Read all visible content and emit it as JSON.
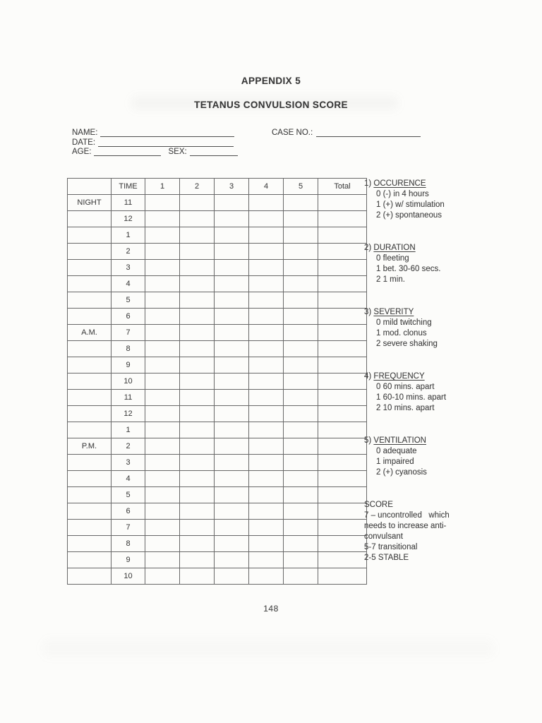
{
  "page": {
    "appendix_label": "APPENDIX 5",
    "title": "TETANUS CONVULSION SCORE",
    "page_number": "148"
  },
  "colors": {
    "ink": "#3c3c3c",
    "paper": "#fcfcfa",
    "table_border": "#686868",
    "form_line": "#4e4e4e"
  },
  "patient_form": {
    "name_label": "NAME:",
    "name_value": "",
    "date_label": "DATE:",
    "date_value": "",
    "age_label": "AGE:",
    "age_value": "",
    "sex_label": "SEX:",
    "sex_value": "",
    "case_no_label": "CASE NO.:",
    "case_no_value": ""
  },
  "score_table": {
    "headers": [
      "",
      "TIME",
      "1",
      "2",
      "3",
      "4",
      "5",
      "Total"
    ],
    "rows": [
      {
        "period": "NIGHT",
        "time": "11",
        "cells": [
          "",
          "",
          "",
          "",
          "",
          ""
        ]
      },
      {
        "period": "",
        "time": "12",
        "cells": [
          "",
          "",
          "",
          "",
          "",
          ""
        ]
      },
      {
        "period": "",
        "time": "1",
        "cells": [
          "",
          "",
          "",
          "",
          "",
          ""
        ]
      },
      {
        "period": "",
        "time": "2",
        "cells": [
          "",
          "",
          "",
          "",
          "",
          ""
        ]
      },
      {
        "period": "",
        "time": "3",
        "cells": [
          "",
          "",
          "",
          "",
          "",
          ""
        ]
      },
      {
        "period": "",
        "time": "4",
        "cells": [
          "",
          "",
          "",
          "",
          "",
          ""
        ]
      },
      {
        "period": "",
        "time": "5",
        "cells": [
          "",
          "",
          "",
          "",
          "",
          ""
        ]
      },
      {
        "period": "",
        "time": "6",
        "cells": [
          "",
          "",
          "",
          "",
          "",
          ""
        ]
      },
      {
        "period": "A.M.",
        "time": "7",
        "cells": [
          "",
          "",
          "",
          "",
          "",
          ""
        ]
      },
      {
        "period": "",
        "time": "8",
        "cells": [
          "",
          "",
          "",
          "",
          "",
          ""
        ]
      },
      {
        "period": "",
        "time": "9",
        "cells": [
          "",
          "",
          "",
          "",
          "",
          ""
        ]
      },
      {
        "period": "",
        "time": "10",
        "cells": [
          "",
          "",
          "",
          "",
          "",
          ""
        ]
      },
      {
        "period": "",
        "time": "11",
        "cells": [
          "",
          "",
          "",
          "",
          "",
          ""
        ]
      },
      {
        "period": "",
        "time": "12",
        "cells": [
          "",
          "",
          "",
          "",
          "",
          ""
        ]
      },
      {
        "period": "",
        "time": "1",
        "cells": [
          "",
          "",
          "",
          "",
          "",
          ""
        ]
      },
      {
        "period": "P.M.",
        "time": "2",
        "cells": [
          "",
          "",
          "",
          "",
          "",
          ""
        ]
      },
      {
        "period": "",
        "time": "3",
        "cells": [
          "",
          "",
          "",
          "",
          "",
          ""
        ]
      },
      {
        "period": "",
        "time": "4",
        "cells": [
          "",
          "",
          "",
          "",
          "",
          ""
        ]
      },
      {
        "period": "",
        "time": "5",
        "cells": [
          "",
          "",
          "",
          "",
          "",
          ""
        ]
      },
      {
        "period": "",
        "time": "6",
        "cells": [
          "",
          "",
          "",
          "",
          "",
          ""
        ]
      },
      {
        "period": "",
        "time": "7",
        "cells": [
          "",
          "",
          "",
          "",
          "",
          ""
        ]
      },
      {
        "period": "",
        "time": "8",
        "cells": [
          "",
          "",
          "",
          "",
          "",
          ""
        ]
      },
      {
        "period": "",
        "time": "9",
        "cells": [
          "",
          "",
          "",
          "",
          "",
          ""
        ]
      },
      {
        "period": "",
        "time": "10",
        "cells": [
          "",
          "",
          "",
          "",
          "",
          ""
        ]
      }
    ]
  },
  "legend": {
    "sections": [
      {
        "number": "1)",
        "title": "OCCURENCE",
        "items": [
          "0 (-) in 4 hours",
          "1 (+) w/ stimulation",
          "2 (+) spontaneous"
        ]
      },
      {
        "number": "2)",
        "title": "DURATION",
        "items": [
          "0 fleeting",
          "1 bet. 30-60 secs.",
          "2 1 min."
        ]
      },
      {
        "number": "3)",
        "title": "SEVERITY",
        "items": [
          "0 mild twitching",
          "1 mod. clonus",
          "2 severe shaking"
        ]
      },
      {
        "number": "4)",
        "title": "FREQUENCY",
        "items": [
          "0 60 mins. apart",
          "1 60-10 mins. apart",
          "2 10 mins. apart"
        ]
      },
      {
        "number": "5)",
        "title": "VENTILATION",
        "items": [
          "0 adequate",
          "1 impaired",
          "2 (+) cyanosis"
        ]
      }
    ],
    "score_interpretation": {
      "title": "SCORE",
      "lines": [
        "7 – uncontrolled   which",
        "needs to increase anti-",
        "convulsant",
        "5-7 transitional",
        "2-5 STABLE"
      ]
    }
  }
}
